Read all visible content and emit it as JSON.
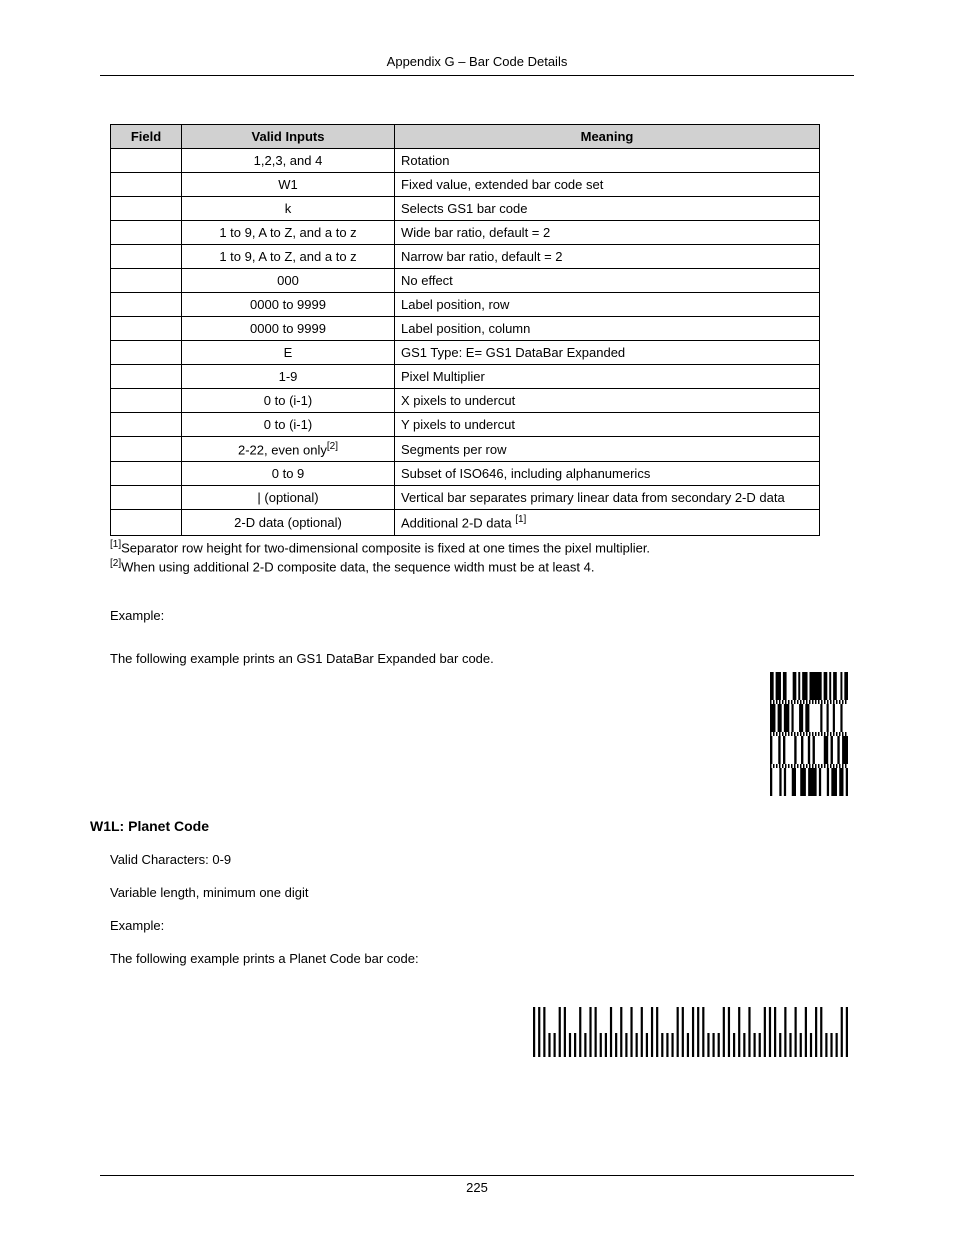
{
  "header": {
    "title": "Appendix G – Bar Code Details"
  },
  "table": {
    "headers": {
      "field": "Field",
      "valid": "Valid Inputs",
      "meaning": "Meaning"
    },
    "rows": [
      {
        "field": "",
        "valid": "1,2,3, and 4",
        "meaning": "Rotation"
      },
      {
        "field": "",
        "valid": "W1",
        "meaning": "Fixed value, extended bar code set"
      },
      {
        "field": "",
        "valid": "k",
        "meaning": "Selects GS1 bar code"
      },
      {
        "field": "",
        "valid": "1 to 9, A to Z, and a to z",
        "meaning": "Wide bar ratio, default = 2"
      },
      {
        "field": "",
        "valid": "1 to 9, A to Z, and a to z",
        "meaning": "Narrow bar ratio, default = 2"
      },
      {
        "field": "",
        "valid": "000",
        "meaning": "No effect"
      },
      {
        "field": "",
        "valid": "0000 to 9999",
        "meaning": "Label position, row"
      },
      {
        "field": "",
        "valid": "0000 to 9999",
        "meaning": "Label position, column"
      },
      {
        "field": "",
        "valid": "E",
        "meaning": "GS1 Type: E= GS1 DataBar Expanded"
      },
      {
        "field": "",
        "valid": "1-9",
        "meaning": "Pixel Multiplier"
      },
      {
        "field": "",
        "valid": "0 to (i-1)",
        "meaning": "X pixels to undercut"
      },
      {
        "field": "",
        "valid": "0 to (i-1)",
        "meaning": "Y pixels to undercut"
      },
      {
        "field": "",
        "valid": "2-22, even only",
        "valid_sup": "[2]",
        "meaning": "Segments per row"
      },
      {
        "field": "",
        "valid": "0 to 9",
        "meaning": "Subset of ISO646, including alphanumerics"
      },
      {
        "field": "",
        "valid": "|  (optional)",
        "meaning": "Vertical bar separates primary linear data from secondary 2-D data"
      },
      {
        "field": "",
        "valid": "2-D data (optional)",
        "meaning": "Additional 2-D data ",
        "meaning_sup": "[1]"
      }
    ]
  },
  "footnotes": {
    "n1_sup": "[1]",
    "n1": "Separator row height for two-dimensional composite is fixed at one times the pixel multiplier.",
    "n2_sup": "[2]",
    "n2": "When using additional 2-D composite data, the sequence width must be at least 4."
  },
  "example1": {
    "label": "Example:",
    "text_pre": "The following example prints an ",
    "text_code": "GS1 DataBar",
    "text_post": " Expanded bar code."
  },
  "w1l": {
    "heading": "W1L:  Planet Code",
    "valid_chars": "Valid Characters: 0-9",
    "var_length": "Variable length, minimum one digit",
    "example_label": "Example:",
    "example_text": "The following example prints a Planet Code bar code:"
  },
  "footer": {
    "page": "225"
  },
  "barcodes": {
    "gs1": {
      "bars_row1": [
        1.5,
        0.8,
        2.2,
        0.8,
        1.5,
        2.5,
        1.5,
        0.8,
        0.8,
        0.8,
        2.2,
        0.8,
        5,
        0.8,
        1.5,
        0.8,
        0.8,
        0.8,
        1.5,
        1.5,
        0.8,
        0.8,
        1.5
      ],
      "bars_row2": [
        2,
        0.8,
        1.5,
        0.8,
        2,
        0.8,
        0.8,
        2,
        1.5,
        0.8,
        1.5,
        4,
        0.8,
        1.5,
        0.8,
        1.5,
        0.8,
        2,
        0.8,
        2
      ],
      "bars_row3": [
        0.8,
        2,
        0.8,
        0.8,
        0.8,
        3,
        0.8,
        1.5,
        0.8,
        1.5,
        0.8,
        0.8,
        0.8,
        3,
        1.5,
        0.8,
        0.8,
        1.5,
        0.8,
        0.8,
        2
      ],
      "bars_row4": [
        0.8,
        2.5,
        0.8,
        0.8,
        0.8,
        2,
        1.5,
        1.5,
        2,
        0.8,
        3,
        0.8,
        0.8,
        2,
        0.8,
        0.8,
        2,
        0.8,
        1.5,
        0.8,
        0.8
      ]
    },
    "planet": {
      "pattern": "TTTSSTTSSTSTTSSTSTSTSTSTTSSSTTSTTTSSSTTSTSTSSTTTSTSTSTSTTSSSTT"
    }
  }
}
